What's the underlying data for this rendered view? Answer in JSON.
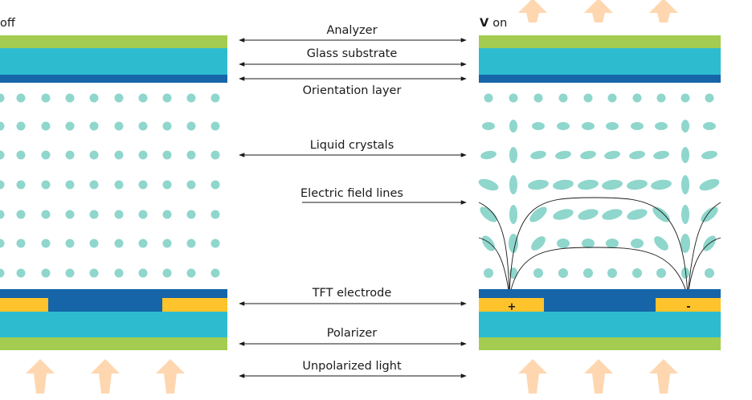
{
  "colors": {
    "analyzer": "#a3cc50",
    "glass": "#2dbccf",
    "orientation": "#1565a8",
    "tft": "#1565a8",
    "electrode": "#ffc32b",
    "polarizer": "#a3cc50",
    "crystal": "#8fd6cc",
    "light_arrow": "#fed7b0",
    "field_line": "#1a1a1a"
  },
  "left_panel": {
    "state_text": "off"
  },
  "right_panel": {
    "state_symbol": "V",
    "state_text": "on",
    "plus_sign": "+",
    "minus_sign": "-"
  },
  "labels": [
    "Analyzer",
    "Glass substrate",
    "Orientation layer",
    "Liquid crystals",
    "Electric field lines",
    "TFT electrode",
    "Polarizer",
    "Unpolarized light"
  ]
}
